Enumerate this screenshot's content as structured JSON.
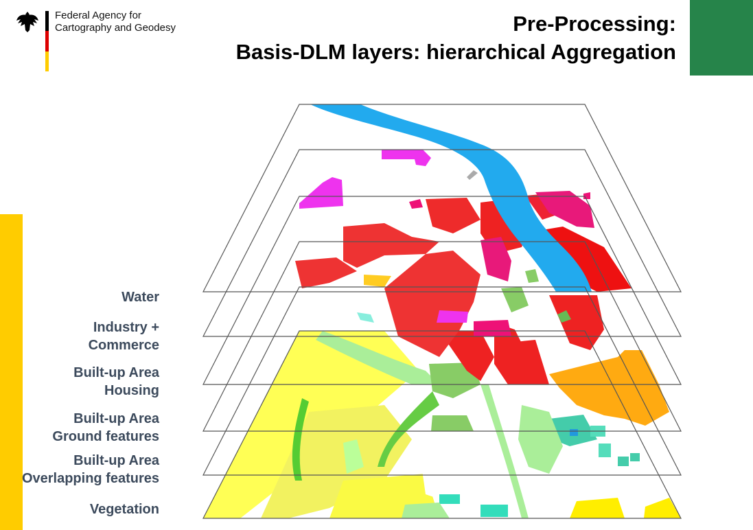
{
  "header": {
    "agency_name": "Federal Agency for\nCartography and Geodesy",
    "flag_colors": [
      "#000000",
      "#dd0000",
      "#ffcc00"
    ],
    "title": "Pre-Processing:\nBasis-DLM layers: hierarchical Aggregation"
  },
  "colors": {
    "accent_green": "#26844a",
    "accent_yellow": "#ffcc00",
    "label_text": "#3c4a5c"
  },
  "layers": [
    {
      "label": "Water",
      "color": "#22aaee"
    },
    {
      "label": "Industry +\nCommerce",
      "color": "#e8197a"
    },
    {
      "label": "Built-up Area\nHousing",
      "color": "#ee2222"
    },
    {
      "label": "Built-up Area\nGround features",
      "color": "#44cc33"
    },
    {
      "label": "Built-up Area\nOverlapping features",
      "color": "#33ddaa"
    },
    {
      "label": "Vegetation",
      "color": "#ffff44"
    }
  ]
}
